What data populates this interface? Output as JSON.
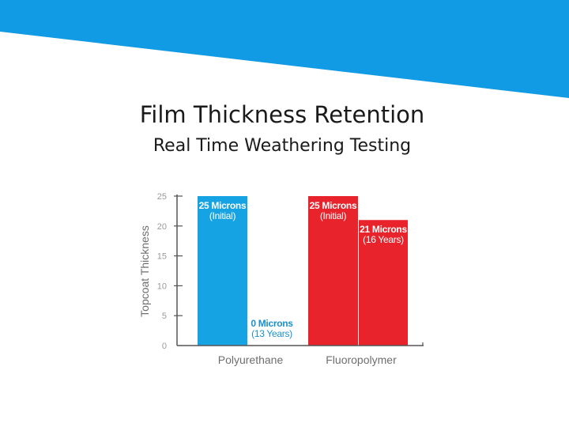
{
  "slide": {
    "title": "Film Thickness Retention",
    "subtitle": "Real Time Weathering Testing"
  },
  "colors": {
    "banner": "#129be5",
    "polyurethane": "#15a3e4",
    "fluoropolymer": "#e8232b",
    "label_on_bar": "#ffffff",
    "label_polyurethane_outside": "#1a8fd0",
    "label_fluoropolymer_outside": "#e8232b"
  },
  "chart_data": {
    "type": "bar",
    "title": "",
    "xlabel": "",
    "ylabel": "Topcoat Thickness",
    "ylim": [
      0,
      25
    ],
    "yticks": [
      "0",
      "5",
      "10",
      "15",
      "20",
      "25"
    ],
    "categories": [
      "Polyurethane",
      "Fluoropolymer"
    ],
    "grid": false,
    "legend": "none",
    "bars": [
      {
        "category": "Polyurethane",
        "value": 25,
        "label": "25 Microns",
        "sublabel": "(Initial)"
      },
      {
        "category": "Polyurethane",
        "value": 0,
        "label": "0 Microns",
        "sublabel": "(13 Years)"
      },
      {
        "category": "Fluoropolymer",
        "value": 25,
        "label": "25 Microns",
        "sublabel": "(Initial)"
      },
      {
        "category": "Fluoropolymer",
        "value": 21,
        "label": "21 Microns",
        "sublabel": "(16 Years)"
      }
    ]
  }
}
